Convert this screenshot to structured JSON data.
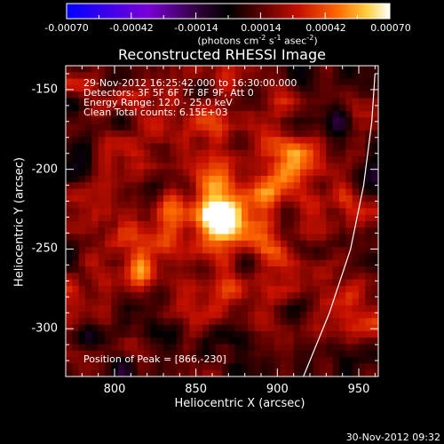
{
  "colorbar": {
    "ticks": [
      "-0.00070",
      "-0.00042",
      "-0.00014",
      "0.00014",
      "0.00042",
      "0.00070"
    ],
    "units_main": "(photons cm",
    "units_exp1": "-2",
    "units_mid": " s",
    "units_exp2": "-1",
    "units_end": " asec",
    "units_exp3": "-2",
    "units_close": ")"
  },
  "annotations": {
    "time": "29-Nov-2012 16:25:42.000 to 16:30:00.000",
    "detectors": "Detectors: 3F 5F 6F 7F 8F 9F, Att 0",
    "energy": "Energy Range: 12.0 - 25.0 keV",
    "clean": "Clean     Total counts: 6.15E+03",
    "peak": "Position of Peak = [866,-230]"
  },
  "footer": {
    "date": "30-Nov-2012 09:32"
  },
  "chart_data": {
    "type": "heatmap",
    "title": "Reconstructed RHESSI Image",
    "xlabel": "Heliocentric X (arcsec)",
    "ylabel": "Heliocentric Y (arcsec)",
    "xlim": [
      770,
      962
    ],
    "ylim": [
      -330,
      -135
    ],
    "xticks": [
      "800",
      "850",
      "900",
      "950"
    ],
    "yticks": [
      "-150",
      "-200",
      "-250",
      "-300"
    ],
    "xtick_values": [
      800,
      850,
      900,
      950
    ],
    "ytick_values": [
      -150,
      -200,
      -250,
      -300
    ],
    "zlim": [
      -0.0007,
      0.0007
    ],
    "colormap": [
      "#0000ff",
      "#7a00d8",
      "#3a0048",
      "#000000",
      "#5a0000",
      "#c81000",
      "#ff6a00",
      "#ffd040",
      "#ffffff"
    ],
    "peak": {
      "x": 866,
      "y": -230,
      "value": 0.0007
    },
    "secondary_sources": [
      {
        "x": 908,
        "y": -197,
        "value": 0.00035
      },
      {
        "x": 815,
        "y": -258,
        "value": 0.00022
      },
      {
        "x": 950,
        "y": -215,
        "value": 0.00024
      },
      {
        "x": 812,
        "y": -160,
        "value": 0.00018
      },
      {
        "x": 930,
        "y": -295,
        "value": 0.00016
      }
    ],
    "limb_curve": [
      [
        916,
        -330
      ],
      [
        932,
        -290
      ],
      [
        945,
        -250
      ],
      [
        953,
        -210
      ],
      [
        958,
        -170
      ],
      [
        960,
        -140
      ]
    ]
  }
}
